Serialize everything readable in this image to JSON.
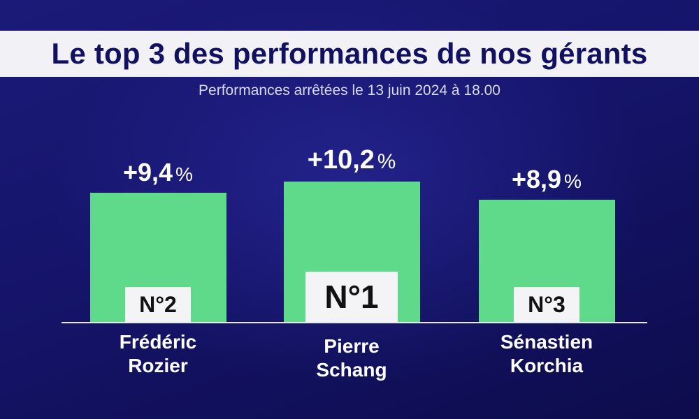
{
  "header": {
    "title": "Le top 3 des performances de nos gérants",
    "subtitle": "Performances arrêtées le 13 juin 2024 à 18.00"
  },
  "colors": {
    "bar": "#5fd98a",
    "background": "#15146a",
    "title_band": "#f1f1f6",
    "title_text": "#121161"
  },
  "chart_data": {
    "type": "bar",
    "title": "Le top 3 des performances de nos gérants",
    "subtitle": "Performances arrêtées le 13 juin 2024 à 18.00",
    "categories": [
      "Frédéric Rozier",
      "Pierre Schang",
      "Sénastien Korchia"
    ],
    "values": [
      9.4,
      10.2,
      8.9
    ],
    "unit": "%",
    "xlabel": "",
    "ylabel": "",
    "grid": false,
    "bars": [
      {
        "value": 9.4,
        "value_text": "+9,4",
        "pct": "%",
        "rank": "N°2",
        "name_line1": "Frédéric",
        "name_line2": "Rozier",
        "highlight": false
      },
      {
        "value": 10.2,
        "value_text": "+10,2",
        "pct": "%",
        "rank": "N°1",
        "name_line1": "Pierre",
        "name_line2": "Schang",
        "highlight": true
      },
      {
        "value": 8.9,
        "value_text": "+8,9",
        "pct": "%",
        "rank": "N°3",
        "name_line1": "Sénastien",
        "name_line2": "Korchia",
        "highlight": false
      }
    ]
  }
}
